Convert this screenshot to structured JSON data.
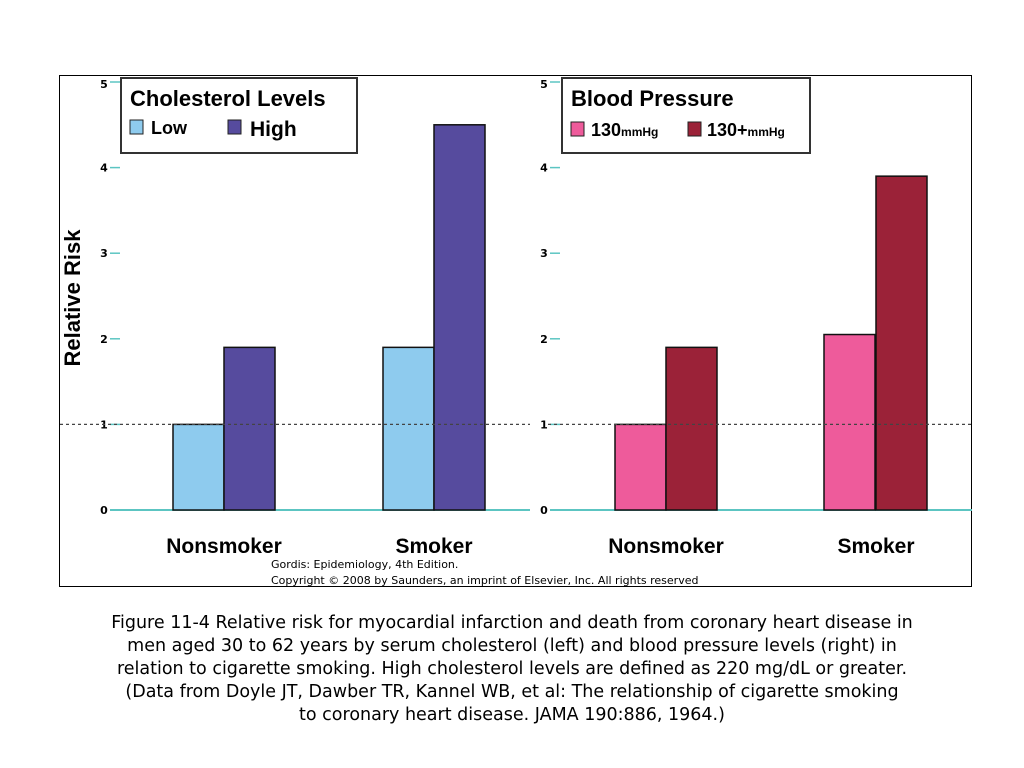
{
  "figure": {
    "ylabel": "Relative Risk",
    "credit_line1": "Gordis: Epidemiology, 4th Edition.",
    "credit_line2": "Copyright © 2008 by Saunders, an imprint of Elsevier, Inc. All rights reserved"
  },
  "caption": {
    "lines": [
      "Figure 11-4 Relative risk for myocardial infarction and death from coronary heart disease in",
      "men aged 30 to 62 years by serum cholesterol (left) and blood pressure levels (right) in",
      "relation to cigarette smoking. High cholesterol levels are defined as 220 mg/dL or greater.",
      "(Data from Doyle JT, Dawber TR, Kannel WB, et al: The relationship of cigarette smoking",
      "to coronary heart disease. JAMA 190:886, 1964.)"
    ]
  },
  "chart_data": [
    {
      "type": "bar",
      "categories": [
        "Nonsmoker",
        "Smoker"
      ],
      "series": [
        {
          "name": "Low",
          "values": [
            1.0,
            1.9
          ],
          "color": "#8ecbee"
        },
        {
          "name": "High",
          "values": [
            1.9,
            4.5
          ],
          "color": "#564b9e"
        }
      ],
      "legend_title": "Cholesterol Levels",
      "ylabel": "Relative Risk",
      "ylim": [
        0,
        5
      ],
      "yticks": [
        0,
        1,
        2,
        3,
        4,
        5
      ],
      "reference_line": 1,
      "legend_position": "top-left"
    },
    {
      "type": "bar",
      "categories": [
        "Nonsmoker",
        "Smoker"
      ],
      "series": [
        {
          "name": "130mmHg",
          "label_main": "130",
          "label_unit": "mmHg",
          "values": [
            1.0,
            2.05
          ],
          "color": "#ee5b9b"
        },
        {
          "name": "130+mmHg",
          "label_main": "130+",
          "label_unit": "mmHg",
          "values": [
            1.9,
            3.9
          ],
          "color": "#9b2238"
        }
      ],
      "legend_title": "Blood Pressure",
      "ylim": [
        0,
        5
      ],
      "yticks": [
        0,
        1,
        2,
        3,
        4,
        5
      ],
      "reference_line": 1,
      "legend_position": "top-left"
    }
  ]
}
